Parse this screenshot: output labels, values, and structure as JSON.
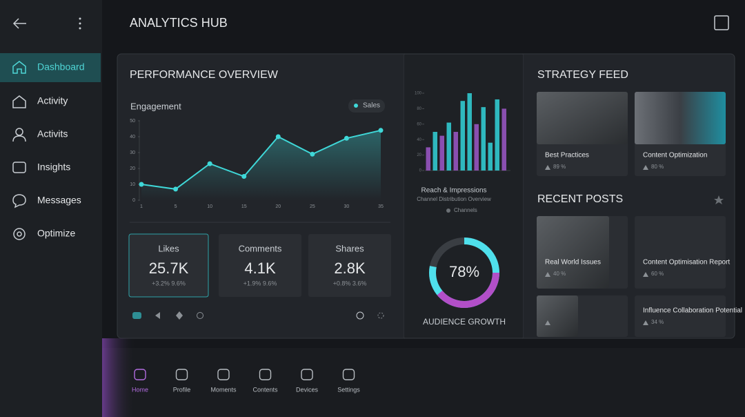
{
  "header": {
    "title": "ANALYTICS HUB"
  },
  "sidebar": {
    "items": [
      "Dashboard",
      "Activity",
      "Activits",
      "Insights",
      "Messages",
      "Optimize"
    ]
  },
  "performance": {
    "title": "PERFORMANCE OVERVIEW",
    "engagement": {
      "type": "line",
      "title": "Engagement",
      "legend": "Sales",
      "color": "#3fd8d8",
      "categories": [
        "1",
        "5",
        "10",
        "15",
        "20",
        "25",
        "30",
        "35"
      ],
      "values": [
        10,
        7,
        23,
        15,
        40,
        29,
        39,
        44
      ],
      "ylim": [
        0,
        50
      ],
      "yticks": [
        0,
        10,
        20,
        30,
        40,
        50
      ]
    },
    "stats": [
      {
        "label": "Likes",
        "value": "25.7K",
        "sub": "+3.2% 9.6%"
      },
      {
        "label": "Comments",
        "value": "4.1K",
        "sub": "+1.9% 9.6%"
      },
      {
        "label": "Shares",
        "value": "2.8K",
        "sub": "+0.8% 3.6%"
      }
    ]
  },
  "reach": {
    "type": "bar",
    "title": "Reach & Impressions",
    "subtitle": "Channel Distribution Overview",
    "legend": "Channels",
    "categories": [
      null,
      null,
      null,
      null,
      null,
      null,
      null,
      null,
      null,
      null,
      null,
      null
    ],
    "values": [
      30,
      50,
      45,
      62,
      50,
      90,
      100,
      60,
      82,
      36,
      92,
      80
    ],
    "colors": [
      "#8a4fb0",
      "#2fb8be",
      "#8a4fb0",
      "#2fb8be",
      "#8a4fb0",
      "#2fb8be",
      "#2fb8be",
      "#8a4fb0",
      "#2fb8be",
      "#2fb8be",
      "#2fb8be",
      "#8a4fb0"
    ],
    "ylim": [
      0,
      100
    ],
    "yticks": [
      0,
      20,
      40,
      60,
      80,
      100
    ]
  },
  "growth": {
    "type": "pie",
    "value": 78,
    "value_label": "78%",
    "label": "AUDIENCE GROWTH",
    "colors": [
      "#4fe0ec",
      "#b24fc8"
    ]
  },
  "strategy": {
    "title": "STRATEGY FEED",
    "cards": [
      {
        "title": "Best Practices",
        "meta": "89 %"
      },
      {
        "title": "Content Optimization",
        "meta": "80 %"
      }
    ]
  },
  "recent": {
    "title": "RECENT POSTS",
    "posts": [
      {
        "title": "Real World Issues",
        "meta": "40 %"
      },
      {
        "title": "Content Optimisation Report",
        "meta": "60 %"
      },
      {
        "title": "Influence Collaboration Potential",
        "meta": "34 %"
      }
    ]
  },
  "bottom_nav": [
    "Home",
    "Profile",
    "Moments",
    "Contents",
    "Devices",
    "Settings"
  ]
}
